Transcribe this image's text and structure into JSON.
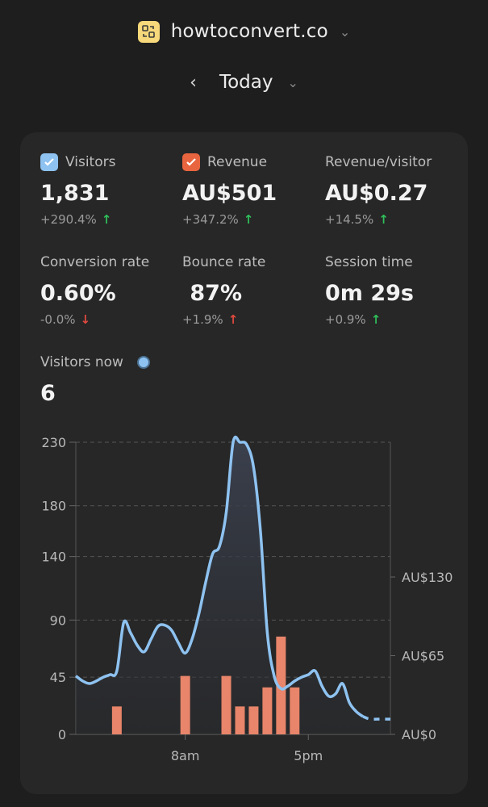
{
  "header": {
    "site_name": "howtoconvert.co",
    "period_label": "Today"
  },
  "colors": {
    "visitors_line": "#8ec2f0",
    "revenue_bar": "#e8856a",
    "checkbox_visitors": "#8ec2f0",
    "checkbox_revenue": "#e8653f",
    "positive": "#2fbf5a",
    "negative": "#e04a3f"
  },
  "metrics": [
    {
      "label": "Visitors",
      "value": "1,831",
      "change": "+290.4%",
      "direction": "up",
      "checkbox": "visitors"
    },
    {
      "label": "Revenue",
      "value": "AU$501",
      "change": "+347.2%",
      "direction": "up",
      "checkbox": "revenue"
    },
    {
      "label": "Revenue/visitor",
      "value": "AU$0.27",
      "change": "+14.5%",
      "direction": "up"
    },
    {
      "label": "Conversion rate",
      "value": "0.60%",
      "change": "-0.0%",
      "direction": "down"
    },
    {
      "label": "Bounce rate",
      "value": " 87%",
      "change": "+1.9%",
      "direction": "up-bad"
    },
    {
      "label": "Session time",
      "value": "0m 29s",
      "change": "+0.9%",
      "direction": "up"
    }
  ],
  "visitors_now": {
    "label": "Visitors now",
    "value": "6"
  },
  "chart_data": {
    "type": "line",
    "x_tick_labels": [
      "8am",
      "5pm"
    ],
    "y_left_ticks": [
      "0",
      "45",
      "90",
      "140",
      "180",
      "230"
    ],
    "y_right_ticks": [
      "AU$0",
      "AU$65",
      "AU$130"
    ],
    "ylim_left": [
      0,
      230
    ],
    "ylim_right": [
      0,
      230
    ],
    "grid": true,
    "series": [
      {
        "kind": "line",
        "axis": "left",
        "hours": [
          0,
          0.5,
          1,
          1.5,
          2,
          2.5,
          3,
          3.5,
          4,
          4.5,
          5,
          5.5,
          6,
          6.5,
          7,
          7.5,
          8,
          8.5,
          9,
          9.5,
          10,
          10.5,
          11,
          11.5,
          12,
          12.5,
          13,
          13.5,
          14,
          14.5,
          15,
          15.5,
          16,
          16.5,
          17,
          17.5,
          18,
          18.5,
          19,
          19.5,
          20,
          20.5,
          21,
          21.5,
          22,
          22.5,
          23
        ],
        "values": [
          46,
          42,
          40,
          42,
          45,
          47,
          50,
          88,
          80,
          70,
          65,
          75,
          85,
          86,
          82,
          72,
          64,
          75,
          95,
          120,
          142,
          148,
          175,
          230,
          230,
          228,
          210,
          160,
          80,
          46,
          36,
          38,
          42,
          45,
          47,
          50,
          38,
          30,
          32,
          40,
          25,
          18,
          14,
          12,
          12,
          12,
          12
        ],
        "partial_from_hour": 21
      },
      {
        "kind": "bar",
        "axis": "right",
        "hours": [
          0,
          1,
          2,
          3,
          4,
          5,
          6,
          7,
          8,
          9,
          10,
          11,
          12,
          13,
          14,
          15,
          16,
          17,
          18,
          19,
          20,
          21,
          22,
          23
        ],
        "values": [
          0,
          0,
          0,
          22,
          0,
          0,
          0,
          0,
          46,
          0,
          0,
          46,
          22,
          22,
          37,
          77,
          37,
          0,
          0,
          0,
          0,
          0,
          0,
          0
        ]
      }
    ]
  }
}
